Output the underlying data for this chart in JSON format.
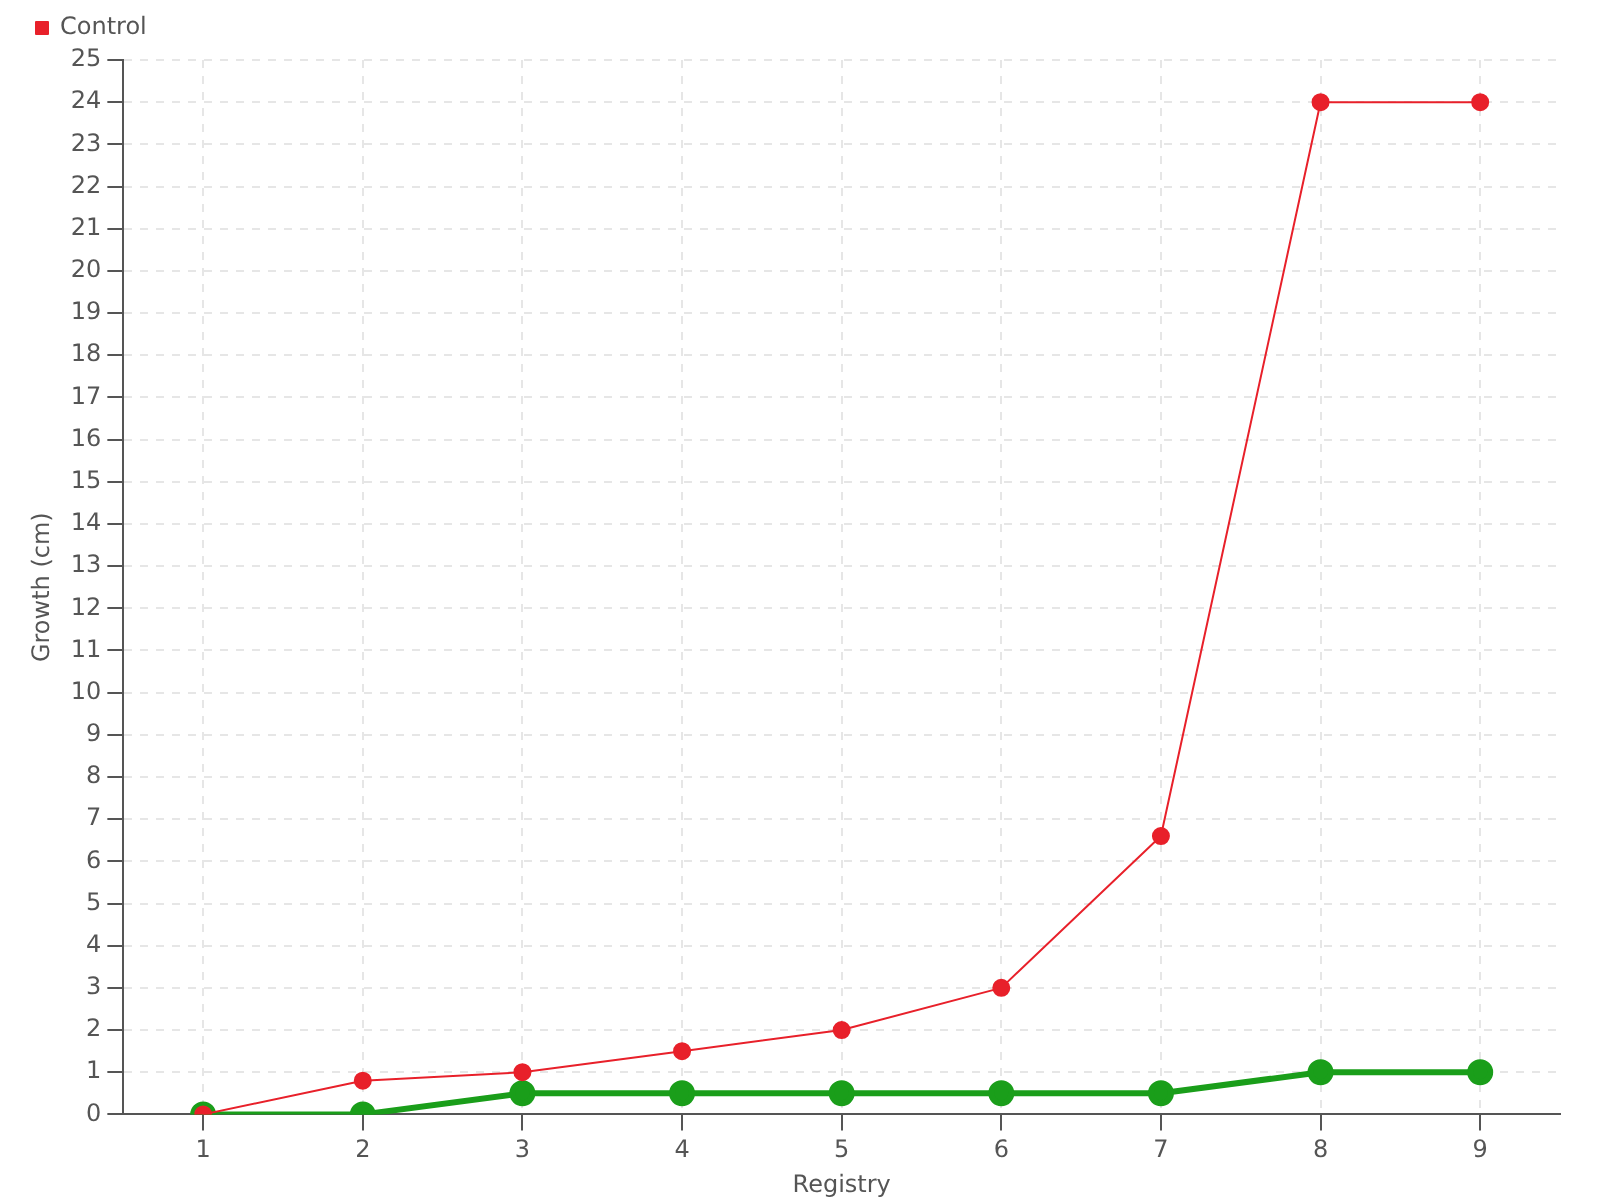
{
  "chart_data": {
    "type": "line",
    "xlabel": "Registry",
    "ylabel": "Growth (cm)",
    "categories": [
      "1",
      "2",
      "3",
      "4",
      "5",
      "6",
      "7",
      "8",
      "9"
    ],
    "series": [
      {
        "color": "#1a9e1a",
        "values": [
          0,
          0,
          0.5,
          0.5,
          0.5,
          0.5,
          0.5,
          1,
          1
        ]
      },
      {
        "name": "Control",
        "color": "#e8202a",
        "values": [
          0,
          0.8,
          1,
          1.5,
          2,
          3,
          6.6,
          24,
          24
        ]
      }
    ],
    "ylim": [
      0,
      25
    ],
    "yticks": [
      0,
      1,
      2,
      3,
      4,
      5,
      6,
      7,
      8,
      9,
      10,
      11,
      12,
      13,
      14,
      15,
      16,
      17,
      18,
      19,
      20,
      21,
      22,
      23,
      24,
      25
    ],
    "grid": true,
    "legend": "top left",
    "marker": "circle",
    "line_style": "solid"
  }
}
